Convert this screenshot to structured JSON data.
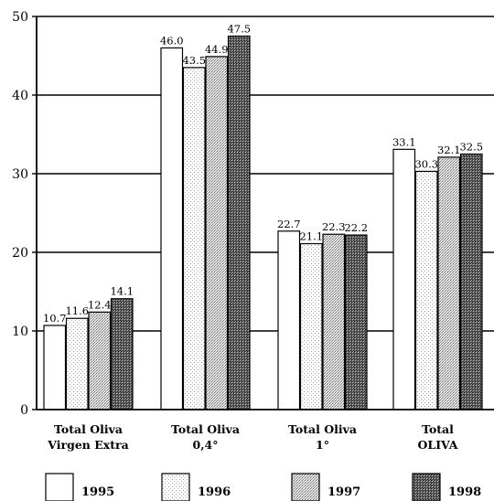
{
  "chart_data": {
    "type": "bar",
    "title": "",
    "xlabel": "",
    "ylabel": "",
    "ylim": [
      0,
      50
    ],
    "yticks": [
      0,
      10,
      20,
      30,
      40,
      50
    ],
    "grid": true,
    "legend_position": "bottom",
    "categories": [
      [
        "Total Oliva",
        "Virgen Extra"
      ],
      [
        "Total Oliva",
        "0,4°"
      ],
      [
        "Total Oliva",
        "1°"
      ],
      [
        "Total",
        "OLIVA"
      ]
    ],
    "series": [
      {
        "name": "1995",
        "values": [
          10.7,
          46.0,
          22.7,
          33.1
        ],
        "value_labels": [
          "10.7",
          "46.0",
          "22.7",
          "33.1"
        ],
        "pattern": "white"
      },
      {
        "name": "1996",
        "values": [
          11.6,
          43.5,
          21.1,
          30.3
        ],
        "value_labels": [
          "11.6",
          "43.5",
          "21.1",
          "30.3"
        ],
        "pattern": "light-dots"
      },
      {
        "name": "1997",
        "values": [
          12.4,
          44.9,
          22.3,
          32.1
        ],
        "value_labels": [
          "12.4",
          "44.9",
          "22.3",
          "32.1"
        ],
        "pattern": "medium-dots"
      },
      {
        "name": "1998",
        "values": [
          14.1,
          47.5,
          22.2,
          32.5
        ],
        "value_labels": [
          "14.1",
          "47.5",
          "22.2",
          "32.5"
        ],
        "pattern": "dark-stipple"
      }
    ]
  }
}
